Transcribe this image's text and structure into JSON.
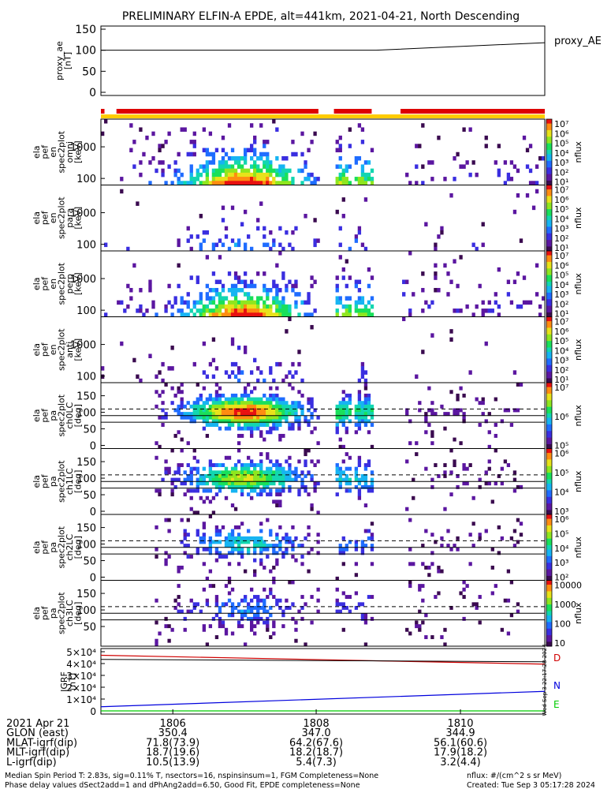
{
  "title": "PRELIMINARY ELFIN-A EPDE, alt=441km, 2021-04-21, North Descending",
  "colors": {
    "panel_bg": "#ffffff",
    "red_bar": "#dd0000",
    "yellow_bar": "#ffcc00",
    "dark_purple": "#3a0a4f",
    "mid_purple": "#6a1fa8",
    "bfield_D": "#d00000",
    "bfield_N": "#0000dd",
    "bfield_E": "#00cc00"
  },
  "proxy_ae": {
    "ylabel": [
      "proxy_ae",
      "[nT]"
    ],
    "legend": "proxy_AE",
    "yticks": [
      "150",
      "100",
      "50",
      "0"
    ],
    "ylim": [
      0,
      150
    ],
    "series_x": [
      0.0,
      0.62,
      1.0
    ],
    "series_y": [
      100,
      100,
      118
    ]
  },
  "status_bars": {
    "red_segments": [
      [
        0.0,
        0.008
      ],
      [
        0.035,
        0.49
      ],
      [
        0.525,
        0.61
      ],
      [
        0.675,
        1.0
      ]
    ],
    "yellow_segments": [
      [
        0.0,
        1.0
      ]
    ]
  },
  "energy_panels": [
    {
      "ylabel": [
        "ela",
        "pef",
        "en",
        "spec2plot",
        "omni",
        "[keV]"
      ],
      "yticks": [
        "1000",
        "100"
      ],
      "intensity": 1.0
    },
    {
      "ylabel": [
        "ela",
        "pef",
        "en",
        "spec2plot",
        "para",
        "[keV]"
      ],
      "yticks": [
        "1000",
        "100"
      ],
      "intensity": 0.25
    },
    {
      "ylabel": [
        "ela",
        "pef",
        "en",
        "spec2plot",
        "perp",
        "[keV]"
      ],
      "yticks": [
        "1000",
        "100"
      ],
      "intensity": 0.95
    },
    {
      "ylabel": [
        "ela",
        "pef",
        "en",
        "spec2plot",
        "anti",
        "[keV]"
      ],
      "yticks": [
        "1000",
        "100"
      ],
      "intensity": 0.2
    }
  ],
  "pa_panels": [
    {
      "ylabel": [
        "ela",
        "pef",
        "pa",
        "spec2plot",
        "ch0LC",
        "[deg]"
      ],
      "yticks": [
        "150",
        "100",
        "50",
        "0"
      ],
      "intensity": 1.0
    },
    {
      "ylabel": [
        "ela",
        "pef",
        "pa",
        "spec2plot",
        "ch1LC",
        "[deg]"
      ],
      "yticks": [
        "150",
        "100",
        "50",
        "0"
      ],
      "intensity": 0.75
    },
    {
      "ylabel": [
        "ela",
        "pef",
        "pa",
        "spec2plot",
        "ch2LC",
        "[deg]"
      ],
      "yticks": [
        "150",
        "100",
        "50",
        "0"
      ],
      "intensity": 0.45
    },
    {
      "ylabel": [
        "ela",
        "pef",
        "pa",
        "spec2plot",
        "ch3LC",
        "[deg]"
      ],
      "yticks": [
        "150",
        "100",
        "50"
      ],
      "intensity": 0.3
    }
  ],
  "colorbars": [
    {
      "label": "nflux",
      "ticks": [
        "10⁷",
        "10⁶",
        "10⁵",
        "10⁴",
        "10³",
        "10²",
        "10¹"
      ]
    },
    {
      "label": "nflux",
      "ticks": [
        "10⁷",
        "10⁶",
        "10⁵",
        "10⁴",
        "10³",
        "10²",
        "10¹"
      ]
    },
    {
      "label": "nflux",
      "ticks": [
        "10⁷",
        "10⁶",
        "10⁵",
        "10⁴",
        "10³",
        "10²",
        "10¹"
      ]
    },
    {
      "label": "nflux",
      "ticks": [
        "10⁷",
        "10⁶",
        "10⁵",
        "10⁴",
        "10³",
        "10²",
        "10¹"
      ]
    },
    {
      "label": "nflux",
      "ticks": [
        "10⁷",
        "10⁶",
        "10⁵"
      ]
    },
    {
      "label": "nflux",
      "ticks": [
        "10⁶",
        "10⁵",
        "10⁴",
        "10³"
      ]
    },
    {
      "label": "nflux",
      "ticks": [
        "10⁶",
        "10⁵",
        "10⁴",
        "10³",
        "10²"
      ]
    },
    {
      "label": "nflux",
      "ticks": [
        "10000",
        "1000",
        "100",
        "10"
      ]
    }
  ],
  "bfield": {
    "ylabel": [
      "IGRF",
      "[nT]"
    ],
    "yticks": [
      "5×10⁴",
      "4×10⁴",
      "3×10⁴",
      "2×10⁴",
      "1×10⁴",
      "0"
    ],
    "ylim": [
      0,
      50000
    ],
    "series": [
      {
        "name": "D",
        "x": [
          0,
          1
        ],
        "y": [
          47000,
          39500
        ]
      },
      {
        "name": "N",
        "x": [
          0,
          1
        ],
        "y": [
          3500,
          16500
        ]
      },
      {
        "name": "E",
        "x": [
          0,
          1
        ],
        "y": [
          0,
          0
        ]
      }
    ],
    "stamp": "Wed Sep  3 22:17:28 2024"
  },
  "time_axis": {
    "ticks": [
      {
        "label": "1806",
        "x": 0.162
      },
      {
        "label": "1808",
        "x": 0.485
      },
      {
        "label": "1810",
        "x": 0.81
      }
    ]
  },
  "orbit_table": {
    "labels": [
      "2021 Apr 21",
      "GLON (east)",
      "MLAT-igrf(dip)",
      "MLT-igrf(dip)",
      "L-igrf(dip)"
    ],
    "columns": [
      {
        "values": [
          "",
          "350.4",
          "71.8(73.9)",
          "18.7(19.6)",
          "10.5(13.9)"
        ]
      },
      {
        "values": [
          "",
          "347.0",
          "64.2(67.6)",
          "18.2(18.7)",
          "5.4(7.3)"
        ]
      },
      {
        "values": [
          "",
          "344.9",
          "56.1(60.6)",
          "17.9(18.2)",
          "3.2(4.4)"
        ]
      }
    ]
  },
  "footer": {
    "line1": "Median Spin Period T: 2.83s, sig=0.11% T, nsectors=16, nspinsinsum=1, FGM Completeness=None",
    "line2": "Phase delay values dSect2add=1 and dPhAng2add=6.50, Good Fit, EPDE completeness=None",
    "units": "nflux: #/(cm^2 s sr MeV)",
    "created": "Created: Tue Sep  3 05:17:28 2024"
  },
  "chart_data": [
    {
      "type": "line",
      "title": "PRELIMINARY ELFIN-A EPDE, alt=441km, 2021-04-21, North Descending",
      "ylabel": "proxy_ae [nT]",
      "ylim": [
        0,
        150
      ],
      "series": [
        {
          "name": "proxy_AE",
          "x": [
            "start",
            "~1808.5",
            "end"
          ],
          "values": [
            100,
            100,
            118
          ]
        }
      ]
    },
    {
      "type": "heatmap",
      "panels": [
        "omni [keV]",
        "para [keV]",
        "perp [keV]",
        "anti [keV]",
        "ch0LC [deg]",
        "ch1LC [deg]",
        "ch2LC [deg]",
        "ch3LC [deg]"
      ],
      "energy_range_keV": [
        60,
        7000
      ],
      "pa_range_deg": [
        0,
        180
      ],
      "colorbar": "nflux"
    },
    {
      "type": "line",
      "ylabel": "IGRF [nT]",
      "ylim": [
        0,
        50000
      ],
      "series": [
        {
          "name": "D",
          "values": [
            47000,
            39500
          ]
        },
        {
          "name": "N",
          "values": [
            3500,
            16500
          ]
        },
        {
          "name": "E",
          "values": [
            0,
            0
          ]
        }
      ],
      "x": [
        "1804.8",
        "1811.7"
      ],
      "xticks": [
        "1806",
        "1808",
        "1810"
      ]
    }
  ]
}
